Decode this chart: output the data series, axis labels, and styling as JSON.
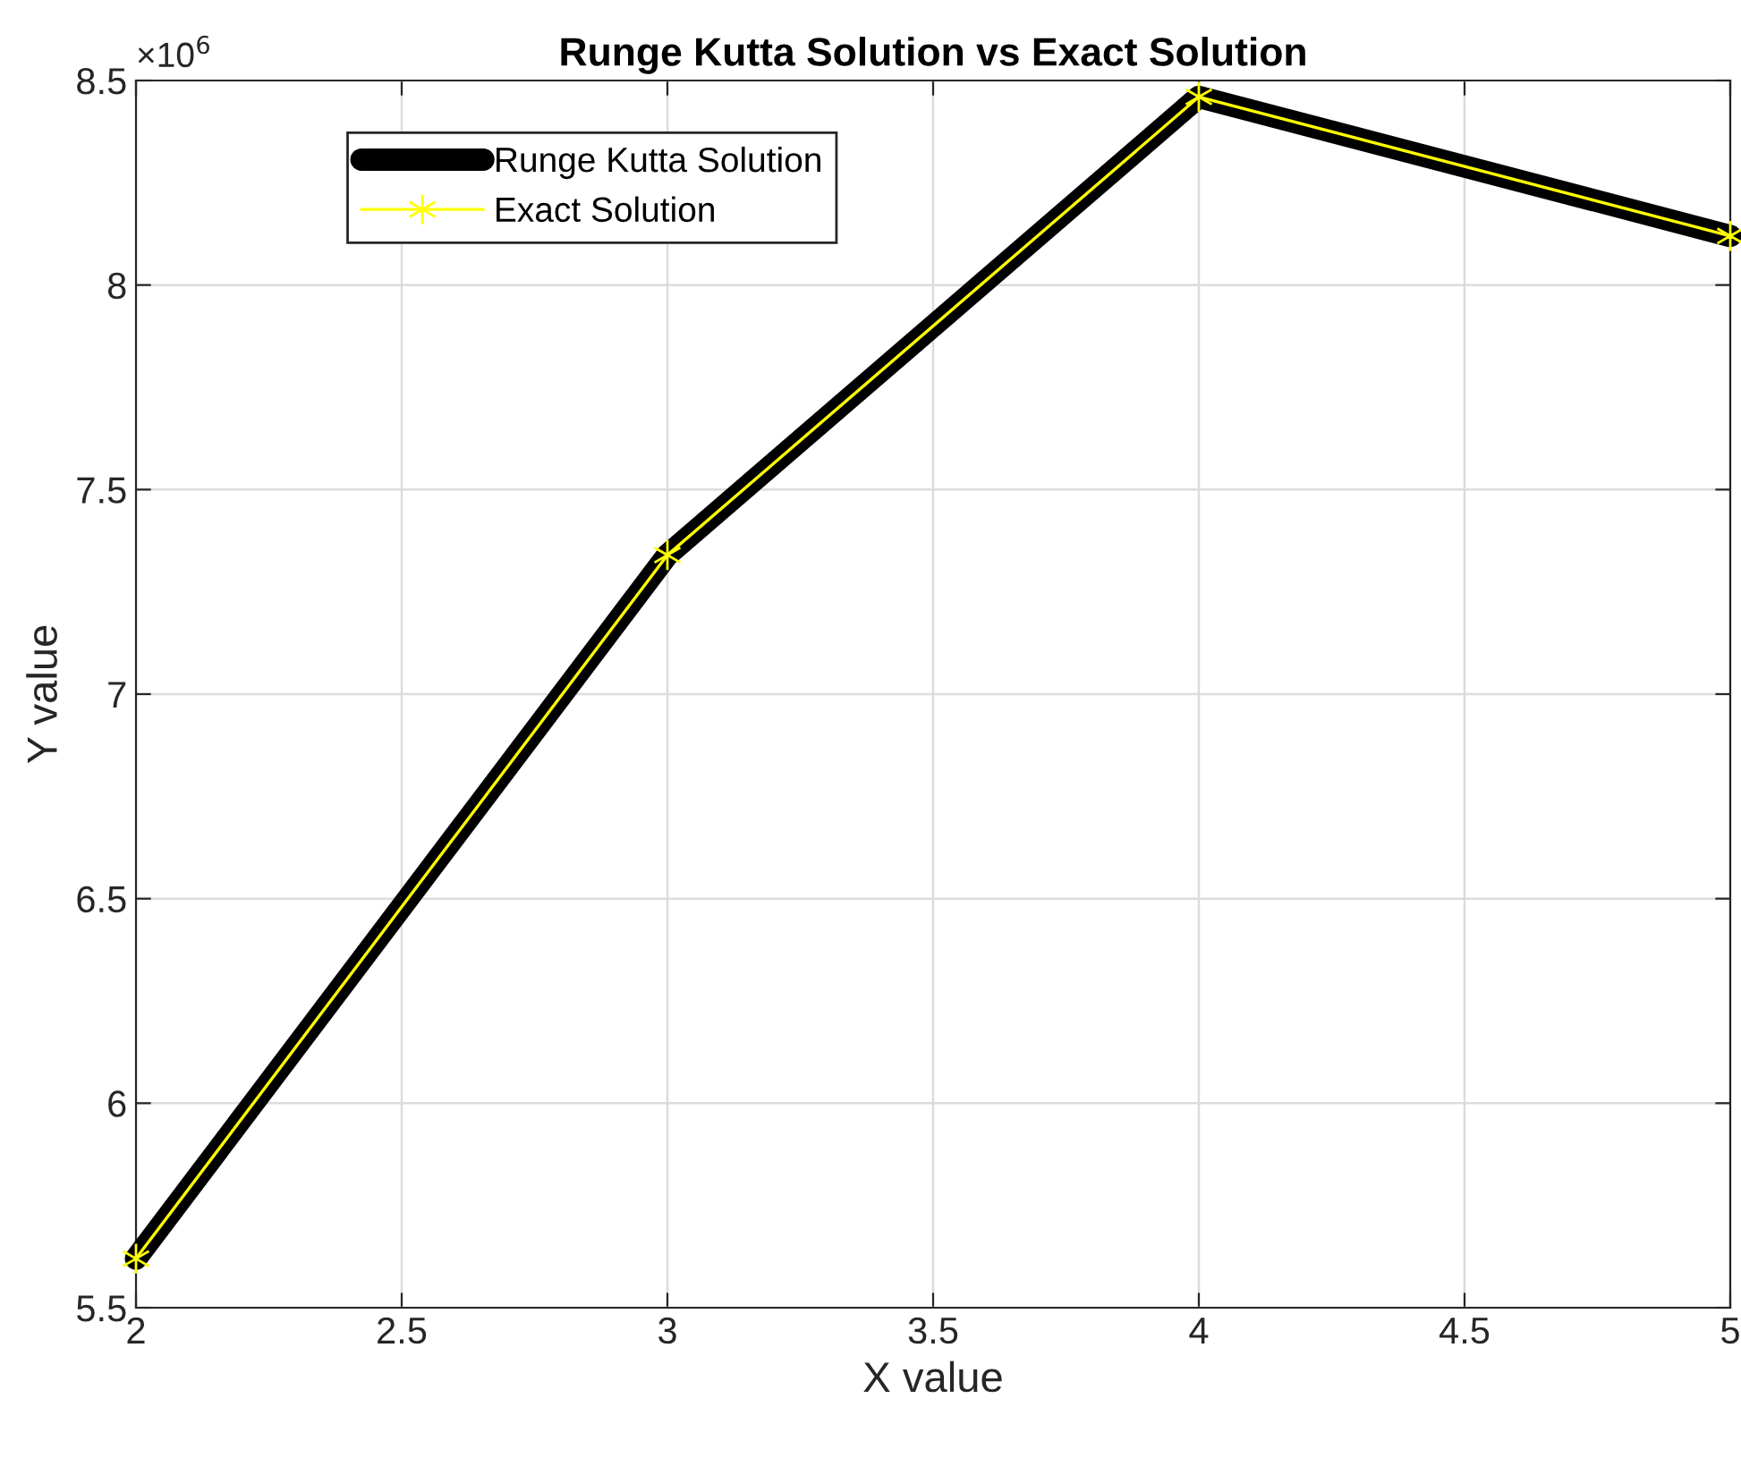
{
  "chart_data": {
    "type": "line",
    "title": "Runge Kutta Solution vs Exact Solution",
    "xlabel": "X value",
    "ylabel": "Y value",
    "x": [
      2,
      3,
      4,
      5
    ],
    "series": [
      {
        "name": "Runge Kutta Solution",
        "color": "#000000",
        "values": [
          5.62,
          7.34,
          8.46,
          8.12
        ]
      },
      {
        "name": "Exact Solution",
        "color": "#ffff00",
        "marker": "cross",
        "values": [
          5.62,
          7.34,
          8.46,
          8.12
        ]
      }
    ],
    "xlim": [
      2,
      5
    ],
    "xticks": [
      2,
      2.5,
      3,
      3.5,
      4,
      4.5,
      5
    ],
    "ylim": [
      5.5,
      8.5
    ],
    "yticks": [
      5.5,
      6,
      6.5,
      7,
      7.5,
      8,
      8.5
    ],
    "annotations": [
      "×10$^{6}$"
    ],
    "grid": true,
    "legend": "top left"
  }
}
